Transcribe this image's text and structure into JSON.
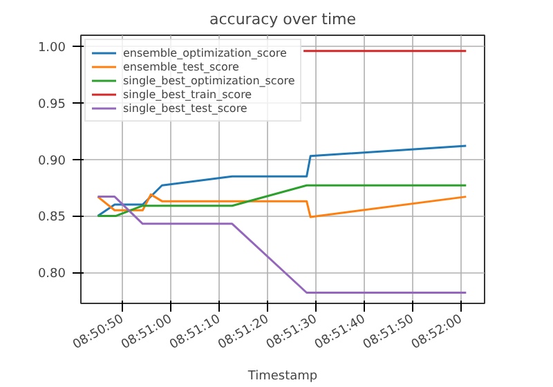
{
  "chart_data": {
    "type": "line",
    "title": "accuracy over time",
    "xlabel": "Timestamp",
    "xlim": [
      8.84481,
      8.868
    ],
    "xticks": [
      {
        "value": 8.84722,
        "label": "08:50:50"
      },
      {
        "value": 8.85,
        "label": "08:51:00"
      },
      {
        "value": 8.85278,
        "label": "08:51:10"
      },
      {
        "value": 8.85556,
        "label": "08:51:20"
      },
      {
        "value": 8.85833,
        "label": "08:51:30"
      },
      {
        "value": 8.86111,
        "label": "08:51:40"
      },
      {
        "value": 8.86389,
        "label": "08:51:50"
      },
      {
        "value": 8.86667,
        "label": "08:52:00"
      }
    ],
    "ylim": [
      0.7725,
      1.01
    ],
    "yticks": [
      {
        "value": 0.8,
        "label": "0.80"
      },
      {
        "value": 0.85,
        "label": "0.85"
      },
      {
        "value": 0.9,
        "label": "0.90"
      },
      {
        "value": 0.95,
        "label": "0.95"
      },
      {
        "value": 1.0,
        "label": "1.00"
      }
    ],
    "grid": true,
    "legend": "top left",
    "series": [
      {
        "name": "ensemble_optimization_score",
        "color": "#1f77b4",
        "x": [
          8.84578,
          8.84675,
          8.84836,
          8.84947,
          8.8535,
          8.85778,
          8.858,
          8.86694
        ],
        "values": [
          0.85,
          0.86,
          0.86,
          0.877,
          0.885,
          0.885,
          0.903,
          0.912
        ]
      },
      {
        "name": "ensemble_test_score",
        "color": "#ff7f0e",
        "x": [
          8.84578,
          8.84675,
          8.84836,
          8.84883,
          8.84947,
          8.85778,
          8.858,
          8.86694
        ],
        "values": [
          0.867,
          0.855,
          0.855,
          0.869,
          0.863,
          0.863,
          0.849,
          0.867
        ]
      },
      {
        "name": "single_best_optimization_score",
        "color": "#2ca02c",
        "x": [
          8.84578,
          8.84683,
          8.84836,
          8.8535,
          8.85778,
          8.86694
        ],
        "values": [
          0.85,
          0.85,
          0.859,
          0.859,
          0.877,
          0.877
        ]
      },
      {
        "name": "single_best_train_score",
        "color": "#d62728",
        "x": [
          8.8576,
          8.86694
        ],
        "values": [
          0.996,
          0.996
        ]
      },
      {
        "name": "single_best_test_score",
        "color": "#9467bd",
        "x": [
          8.84578,
          8.84675,
          8.84836,
          8.8535,
          8.85778,
          8.86694
        ],
        "values": [
          0.867,
          0.867,
          0.843,
          0.843,
          0.782,
          0.782
        ]
      }
    ]
  }
}
